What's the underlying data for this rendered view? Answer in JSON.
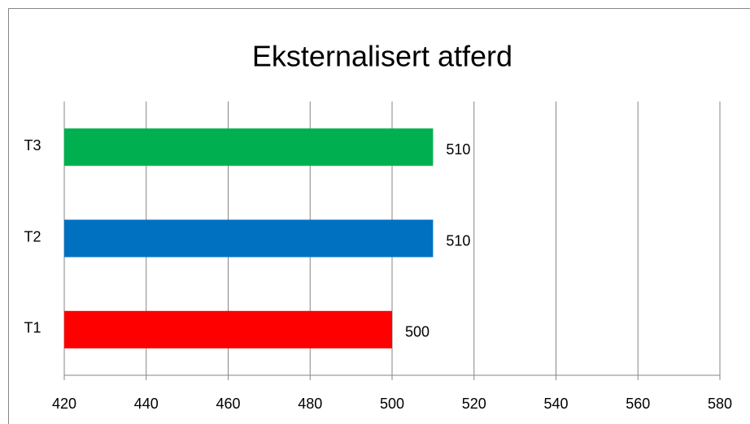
{
  "chart_data": {
    "type": "hbar",
    "title": "Eksternalisert atferd",
    "categories": [
      "T1",
      "T2",
      "T3"
    ],
    "values": [
      500,
      510,
      510
    ],
    "colors": [
      "#ff0000",
      "#0070c0",
      "#00b050"
    ],
    "xlim": [
      420,
      580
    ],
    "xticks": [
      420,
      440,
      460,
      480,
      500,
      520,
      540,
      560,
      580
    ],
    "grid": true
  }
}
